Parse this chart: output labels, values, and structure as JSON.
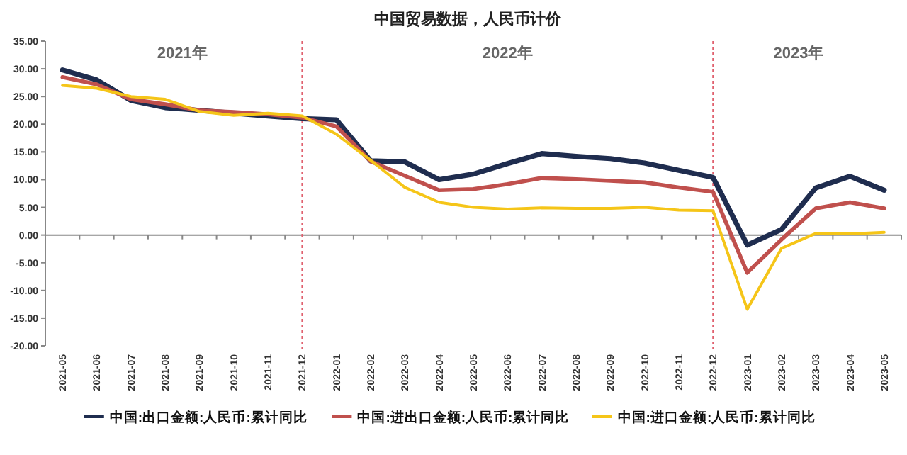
{
  "chart_data": {
    "type": "line",
    "title": "中国贸易数据，人民币计价",
    "categories": [
      "2021-05",
      "2021-06",
      "2021-07",
      "2021-08",
      "2021-09",
      "2021-10",
      "2021-11",
      "2021-12",
      "2022-01",
      "2022-02",
      "2022-03",
      "2022-04",
      "2022-05",
      "2022-06",
      "2022-07",
      "2022-08",
      "2022-09",
      "2022-10",
      "2022-11",
      "2022-12",
      "2023-01",
      "2023-02",
      "2023-03",
      "2023-04",
      "2023-05"
    ],
    "series": [
      {
        "name": "中国:出口金额:人民币:累计同比",
        "color": "#1f2d4f",
        "values": [
          29.8,
          28,
          24.3,
          23,
          22.5,
          22,
          21.5,
          21,
          20.8,
          13.4,
          13.2,
          10,
          11,
          12.9,
          14.7,
          14.2,
          13.8,
          13,
          11.7,
          10.4,
          -1.8,
          1,
          8.5,
          10.6,
          8.1
        ]
      },
      {
        "name": "中国:进出口金额:人民币:累计同比",
        "color": "#c0504d",
        "values": [
          28.5,
          27.2,
          24.5,
          23.6,
          22.5,
          22.2,
          21.8,
          21.2,
          19.6,
          13.3,
          10.7,
          8.1,
          8.3,
          9.2,
          10.3,
          10.1,
          9.8,
          9.5,
          8.6,
          7.8,
          -6.8,
          -0.8,
          4.8,
          5.9,
          4.8
        ]
      },
      {
        "name": "中国:进口金额:人民币:累计同比",
        "color": "#f5c518",
        "values": [
          27,
          26.5,
          25,
          24.5,
          22.3,
          21.6,
          22,
          21.5,
          18.2,
          13.5,
          8.6,
          5.9,
          5,
          4.7,
          4.9,
          4.8,
          4.8,
          5,
          4.5,
          4.4,
          -13.4,
          -2.4,
          0.3,
          0.2,
          0.5
        ]
      }
    ],
    "ylim": [
      -20,
      35
    ],
    "yticks": [
      {
        "value": -20,
        "label": "-20.00"
      },
      {
        "value": -15,
        "label": "-15.00"
      },
      {
        "value": -10,
        "label": "-10.00"
      },
      {
        "value": -5,
        "label": "-5.00"
      },
      {
        "value": 0,
        "label": "0.00"
      },
      {
        "value": 5,
        "label": "5.00"
      },
      {
        "value": 10,
        "label": "10.00"
      },
      {
        "value": 15,
        "label": "15.00"
      },
      {
        "value": 20,
        "label": "20.00"
      },
      {
        "value": 25,
        "label": "25.00"
      },
      {
        "value": 30,
        "label": "30.00"
      },
      {
        "value": 35,
        "label": "35.00"
      }
    ],
    "ref_lines": [
      {
        "axis": "x",
        "value": "2021-12",
        "color": "#e0606e",
        "line_style": "dotted"
      },
      {
        "axis": "x",
        "value": "2022-12",
        "color": "#e0606e",
        "line_style": "dotted"
      }
    ],
    "annotations": [
      "2021年",
      "2022年",
      "2023年"
    ],
    "grid": false,
    "legend": "bottom",
    "marker": "none",
    "line_style": "solid"
  }
}
